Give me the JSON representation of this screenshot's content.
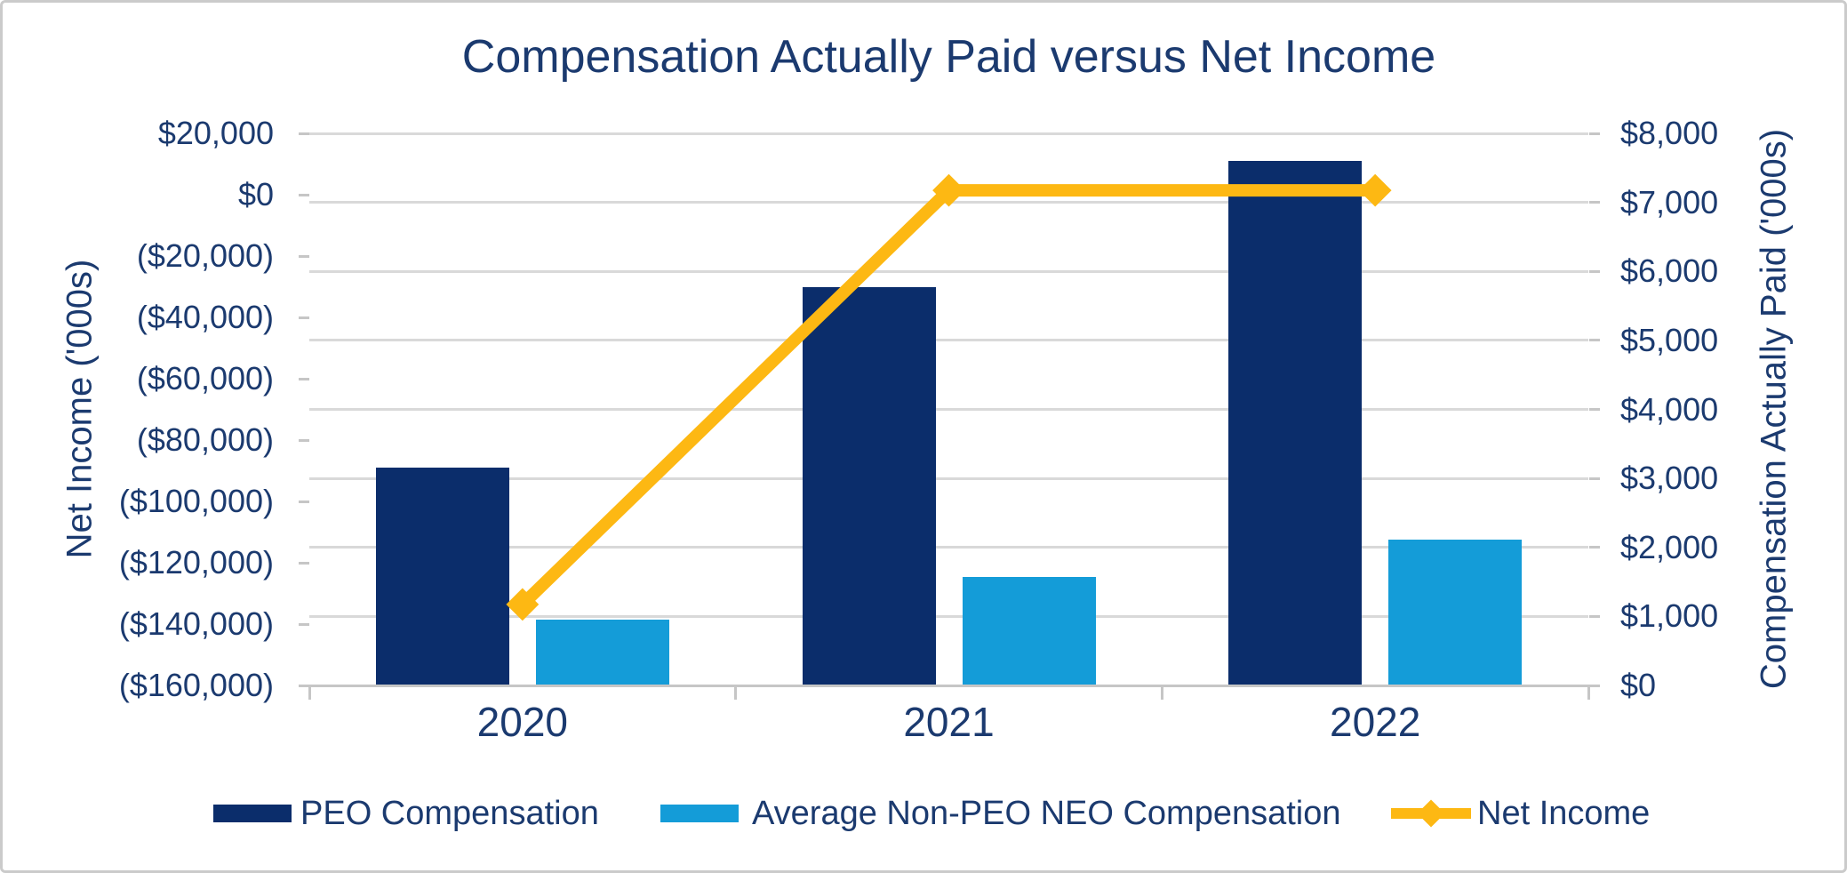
{
  "chart_data": {
    "type": "combo-bar-line",
    "title": "Compensation Actually Paid versus Net Income",
    "categories": [
      "2020",
      "2021",
      "2022"
    ],
    "bar_series": [
      {
        "name": "PEO Compensation",
        "axis": "right",
        "color": "#0B2D6B",
        "values": [
          3150,
          5770,
          7600
        ]
      },
      {
        "name": "Average Non-PEO NEO Compensation",
        "axis": "right",
        "color": "#149CD8",
        "values": [
          950,
          1570,
          2110
        ]
      }
    ],
    "line_series": [
      {
        "name": "Net Income",
        "axis": "left",
        "color": "#FDB813",
        "marker": "diamond",
        "values": [
          -133600,
          1400,
          1400
        ]
      }
    ],
    "left_axis": {
      "title": "Net Income ('000s)",
      "max": 20000,
      "min": -160000,
      "step": 20000,
      "tick_labels": [
        "$20,000",
        "$0",
        "($20,000)",
        "($40,000)",
        "($60,000)",
        "($80,000)",
        "($100,000)",
        "($120,000)",
        "($140,000)",
        "($160,000)"
      ]
    },
    "right_axis": {
      "title": "Compensation Actually Paid ('000s)",
      "max": 8000,
      "min": 0,
      "step": 1000,
      "tick_labels": [
        "$8,000",
        "$7,000",
        "$6,000",
        "$5,000",
        "$4,000",
        "$3,000",
        "$2,000",
        "$1,000",
        "$0"
      ]
    },
    "legend": [
      "PEO Compensation",
      "Average Non-PEO NEO Compensation",
      "Net Income"
    ],
    "grid": "horizontal major gridlines (right axis), legend bottom",
    "colors": {
      "text": "#1B3A6F",
      "gridline": "#D9D9D9",
      "axis_line": "#C6C6C6",
      "border": "#CBCBCB",
      "background": "#FFFFFF"
    }
  }
}
